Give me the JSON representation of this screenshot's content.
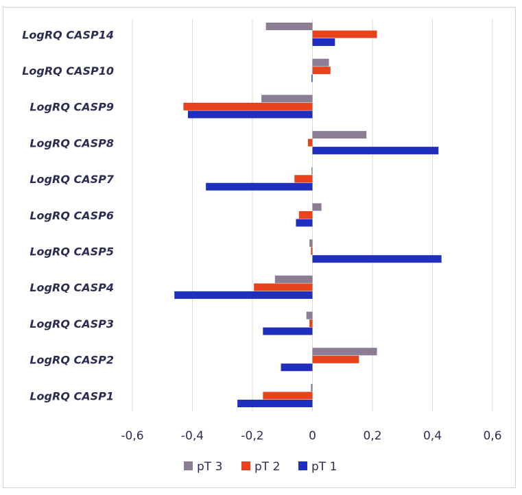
{
  "chart_data": {
    "type": "bar",
    "orientation": "horizontal",
    "categories": [
      "LogRQ CASP14",
      "LogRQ CASP10",
      "LogRQ CASP9",
      "LogRQ CASP8",
      "LogRQ CASP7",
      "LogRQ CASP6",
      "LogRQ CASP5",
      "LogRQ CASP4",
      "LogRQ CASP3",
      "LogRQ CASP2",
      "LogRQ CASP1"
    ],
    "series": [
      {
        "name": "pT 3",
        "color": "#8b7d94",
        "values": [
          -0.155,
          0.055,
          -0.17,
          0.18,
          -0.003,
          0.03,
          -0.01,
          -0.125,
          -0.02,
          0.215,
          -0.005
        ]
      },
      {
        "name": "pT 2",
        "color": "#e8431c",
        "values": [
          0.215,
          0.06,
          -0.43,
          -0.015,
          -0.06,
          -0.045,
          -0.005,
          -0.195,
          -0.01,
          0.155,
          -0.165
        ]
      },
      {
        "name": "pT 1",
        "color": "#1f2ebd",
        "values": [
          0.075,
          -0.003,
          -0.415,
          0.42,
          -0.355,
          -0.055,
          0.43,
          -0.46,
          -0.165,
          -0.105,
          -0.25
        ]
      }
    ],
    "xlim": [
      -0.6,
      0.6
    ],
    "xticks": [
      "-0,6",
      "-0,4",
      "-0,2",
      "0",
      "0,2",
      "0,4",
      "0,6"
    ],
    "grid": "vertical",
    "legend_position": "bottom",
    "title": "",
    "xlabel": "",
    "ylabel": ""
  }
}
